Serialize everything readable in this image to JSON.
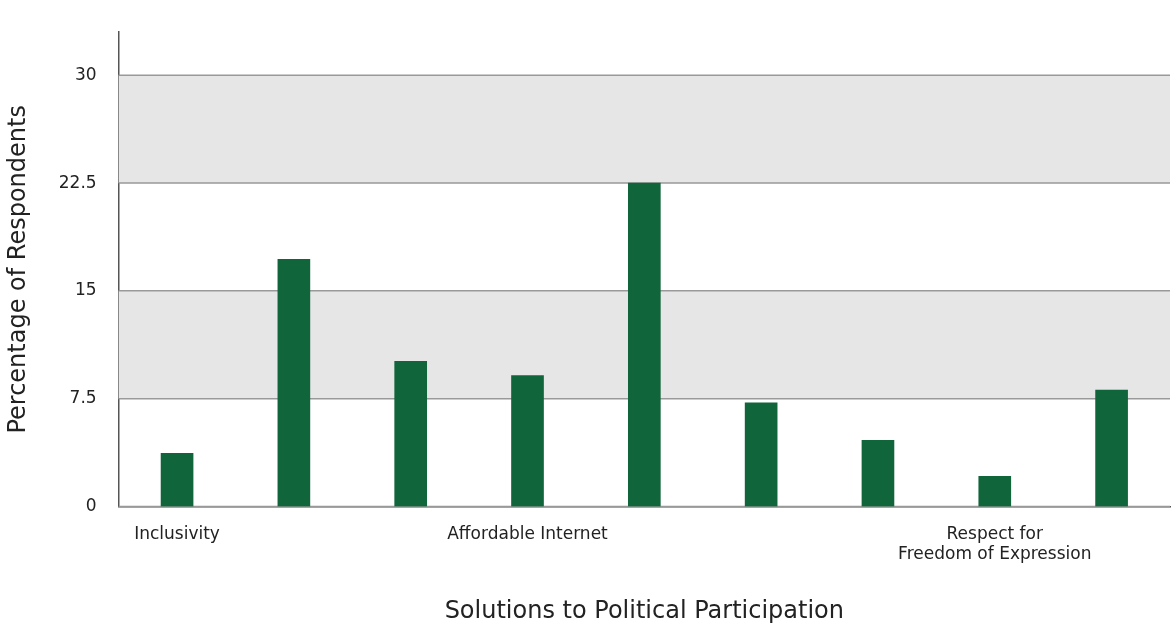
{
  "chart_data": {
    "type": "bar",
    "xlabel": "Solutions to Political Participation",
    "ylabel": "Percentage of Respondents",
    "categories": [
      "Inclusivity",
      null,
      null,
      "Affordable Internet",
      null,
      null,
      null,
      "Respect for\nFreedom of Expression",
      null
    ],
    "values": [
      3.7,
      17.2,
      10.1,
      9.1,
      22.5,
      7.2,
      4.6,
      2.1,
      8.1
    ],
    "color": "#10653a",
    "ylim": [
      0,
      33
    ],
    "yticks": [
      0,
      7.5,
      15,
      22.5,
      30
    ],
    "grid": "y",
    "legend": false,
    "bands": [
      {
        "axis": "y",
        "from": 7.5,
        "to": 15,
        "color": "#e6e6e6"
      },
      {
        "axis": "y",
        "from": 22.5,
        "to": 30,
        "color": "#e6e6e6"
      }
    ]
  }
}
